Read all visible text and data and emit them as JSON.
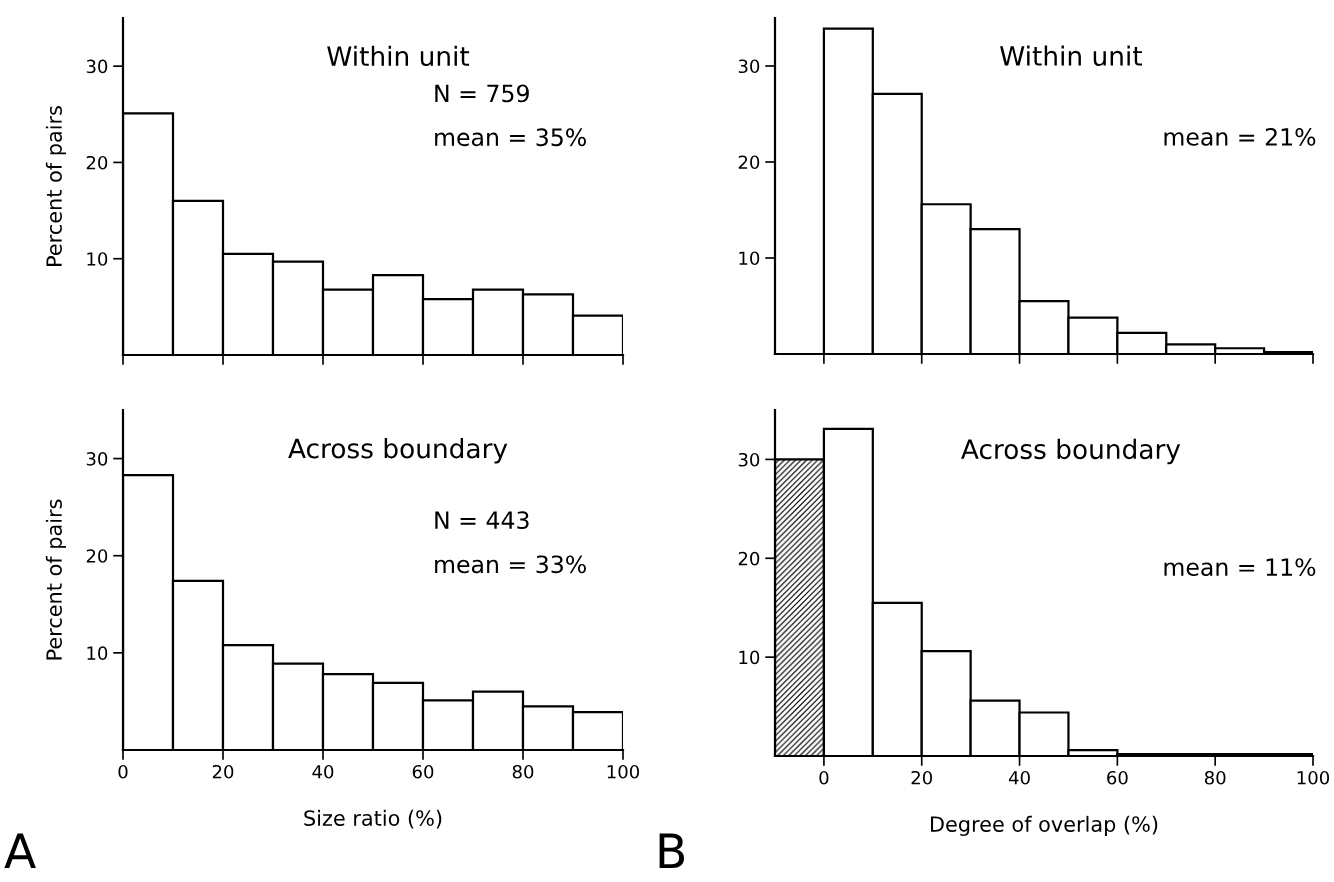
{
  "chart_data": [
    {
      "type": "histogram",
      "title": "Within unit",
      "ylabel": "Percent of pairs",
      "bins": [
        0,
        10,
        20,
        30,
        40,
        50,
        60,
        70,
        80,
        90,
        100
      ],
      "values": [
        25.1,
        16,
        10.5,
        9.7,
        6.8,
        8.3,
        5.8,
        6.8,
        6.3,
        4.1
      ],
      "colors": [
        "#ffffff",
        "#ffffff",
        "#ffffff",
        "#ffffff",
        "#ffffff",
        "#ffffff",
        "#ffffff",
        "#ffffff",
        "#ffffff",
        "#ffffff"
      ],
      "xlim": [
        0,
        100
      ],
      "xticks": [
        0,
        20,
        40,
        60,
        80,
        100
      ],
      "ylim": [
        0,
        35
      ],
      "yticks": [
        10,
        20,
        30
      ],
      "tick_labels": "y",
      "grid": false,
      "annotations": [
        "N = 759",
        "mean = 35%"
      ]
    },
    {
      "type": "histogram",
      "title": "Within unit",
      "bins": [
        0,
        10,
        20,
        30,
        40,
        50,
        60,
        70,
        80,
        90,
        100
      ],
      "values": [
        33.9,
        27.1,
        15.6,
        13.0,
        5.5,
        3.8,
        2.2,
        1.0,
        0.6,
        0.2
      ],
      "colors": [
        "#ffffff",
        "#ffffff",
        "#ffffff",
        "#ffffff",
        "#ffffff",
        "#ffffff",
        "#ffffff",
        "#ffffff",
        "#ffffff",
        "#ffffff"
      ],
      "xlim": [
        -10,
        100
      ],
      "xticks": [
        0,
        20,
        40,
        60,
        80,
        100
      ],
      "ylim": [
        0,
        35
      ],
      "yticks": [
        10,
        20,
        30
      ],
      "tick_labels": "y",
      "grid": false,
      "annotations": [
        "mean = 21%"
      ]
    },
    {
      "type": "histogram",
      "title": "Across boundary",
      "xlabel": "Size ratio (%)",
      "ylabel": "Percent of pairs",
      "bins": [
        0,
        10,
        20,
        30,
        40,
        50,
        60,
        70,
        80,
        90,
        100
      ],
      "values": [
        28.3,
        17.4,
        10.8,
        8.9,
        7.8,
        6.9,
        5.1,
        6.0,
        4.5,
        3.9
      ],
      "colors": [
        "#ffffff",
        "#ffffff",
        "#ffffff",
        "#ffffff",
        "#ffffff",
        "#ffffff",
        "#ffffff",
        "#ffffff",
        "#ffffff",
        "#ffffff"
      ],
      "xlim": [
        0,
        100
      ],
      "xticks": [
        0,
        20,
        40,
        60,
        80,
        100
      ],
      "ylim": [
        0,
        35
      ],
      "yticks": [
        10,
        20,
        30
      ],
      "grid": false,
      "annotations": [
        "N = 443",
        "mean = 33%",
        "A"
      ]
    },
    {
      "type": "histogram",
      "title": "Across boundary",
      "xlabel": "Degree of overlap (%)",
      "bins": [
        -10,
        0,
        10,
        20,
        30,
        40,
        50,
        60,
        70,
        80,
        90,
        100
      ],
      "values": [
        30.0,
        33.1,
        15.5,
        10.6,
        5.6,
        4.4,
        0.6,
        0.2,
        0.2,
        0.2,
        0.2
      ],
      "colors": [
        "#000000",
        "#ffffff",
        "#ffffff",
        "#ffffff",
        "#ffffff",
        "#ffffff",
        "#ffffff",
        "#ffffff",
        "#ffffff",
        "#ffffff",
        "#ffffff"
      ],
      "xlim": [
        -10,
        100
      ],
      "xticks": [
        0,
        20,
        40,
        60,
        80,
        100
      ],
      "ylim": [
        0,
        35
      ],
      "yticks": [
        10,
        20,
        30
      ],
      "grid": false,
      "annotations": [
        "mean = 11%",
        "B"
      ]
    }
  ]
}
